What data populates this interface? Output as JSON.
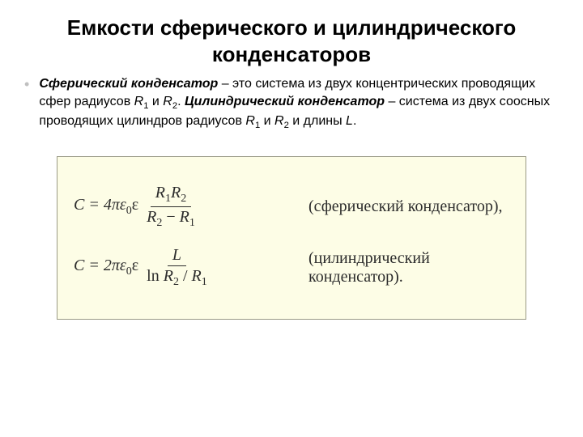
{
  "title_line1": "Емкости сферического и цилиндрического",
  "title_line2": "конденсаторов",
  "bullet_glyph": "•",
  "bullet_color": "#c0c0c0",
  "para": {
    "t1_bi": "Сферический конденсатор",
    "t2": " – это система из двух концентрических проводящих сфер радиусов ",
    "r1": "R",
    "r1_sub": "1",
    "t3": " и ",
    "r2": "R",
    "r2_sub": "2",
    "t4": ". ",
    "t5_bi": "Цилиндрический конденсатор",
    "t6": " – система из двух соосных проводящих цилиндров радиусов ",
    "r3": "R",
    "r3_sub": "1",
    "t7": " и ",
    "r4": "R",
    "r4_sub": "2",
    "t8": " и длины ",
    "L": "L",
    "t9": "."
  },
  "formula_box": {
    "background_color": "#fdfde6",
    "border_color": "#9a9a86",
    "font_color": "#2c2c2c"
  },
  "f1": {
    "lhs": "C = 4πε",
    "eps_sub": "0",
    "eps": "ε",
    "num_a": "R",
    "num_a_sub": "1",
    "num_b": "R",
    "num_b_sub": "2",
    "den_a": "R",
    "den_a_sub": "2",
    "den_minus": " − ",
    "den_b": "R",
    "den_b_sub": "1",
    "label": "(сферический конденсатор),"
  },
  "f2": {
    "lhs": "C = 2πε",
    "eps_sub": "0",
    "eps": "ε",
    "num": "L",
    "den_ln": "ln ",
    "den_a": "R",
    "den_a_sub": "2",
    "den_slash": " / ",
    "den_b": "R",
    "den_b_sub": "1",
    "label": "(цилиндрический конденсатор)."
  }
}
